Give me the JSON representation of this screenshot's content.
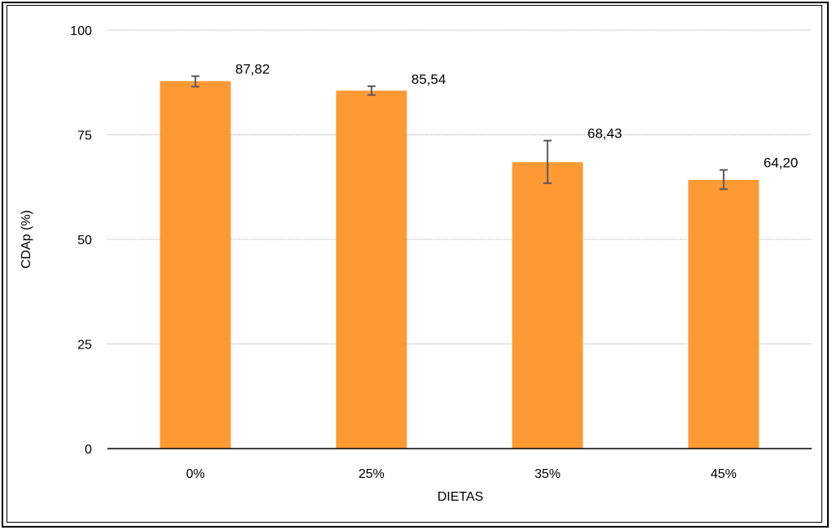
{
  "chart_data": {
    "type": "bar",
    "categories": [
      "0%",
      "25%",
      "35%",
      "45%"
    ],
    "values": [
      87.82,
      85.54,
      68.43,
      64.2
    ],
    "value_labels": [
      "87,82",
      "85,54",
      "68,43",
      "64,20"
    ],
    "error": [
      [
        86.5,
        89.0
      ],
      [
        84.5,
        86.6
      ],
      [
        63.4,
        73.6
      ],
      [
        62.0,
        66.6
      ]
    ],
    "xlabel": "DIETAS",
    "ylabel": "CDAp (%)",
    "ylim": [
      0,
      100
    ],
    "yticks": [
      0,
      25,
      50,
      75,
      100
    ],
    "ytick_labels": [
      "0",
      "25",
      "50",
      "75",
      "100"
    ],
    "grid": true,
    "colors": {
      "bar": "#FF9933",
      "error_bar": "#595959",
      "grid": "#A6A6A6",
      "axis": "#000000"
    }
  }
}
